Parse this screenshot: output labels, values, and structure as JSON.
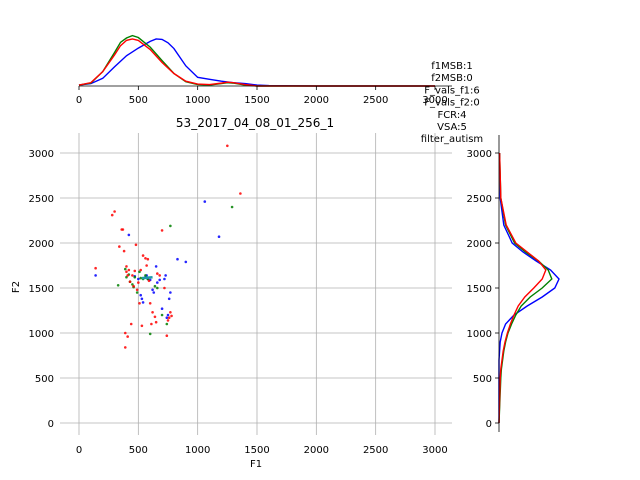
{
  "chart_data": [
    {
      "type": "scatter",
      "title": "53_2017_04_08_01_256_1",
      "xlabel": "F1",
      "ylabel": "F2",
      "xlim": [
        -100,
        3150
      ],
      "ylim": [
        -100,
        3230
      ],
      "xticks": [
        "0",
        "500",
        "1000",
        "1500",
        "2000",
        "2500",
        "3000"
      ],
      "yticks": [
        "0",
        "500",
        "1000",
        "1500",
        "2000",
        "2500",
        "3000"
      ],
      "grid": true,
      "series": [
        {
          "color": "#0000ff",
          "points": [
            [
              140,
              1640
            ],
            [
              420,
              2090
            ],
            [
              470,
              1630
            ],
            [
              500,
              1600
            ],
            [
              520,
              1420
            ],
            [
              530,
              1380
            ],
            [
              540,
              1340
            ],
            [
              560,
              1620
            ],
            [
              570,
              1640
            ],
            [
              580,
              1600
            ],
            [
              600,
              1590
            ],
            [
              620,
              1480
            ],
            [
              630,
              1450
            ],
            [
              650,
              1740
            ],
            [
              660,
              1560
            ],
            [
              680,
              1590
            ],
            [
              700,
              1270
            ],
            [
              720,
              1600
            ],
            [
              730,
              1640
            ],
            [
              740,
              1170
            ],
            [
              750,
              1200
            ],
            [
              760,
              1380
            ],
            [
              770,
              1450
            ],
            [
              830,
              1820
            ],
            [
              900,
              1790
            ],
            [
              1060,
              2460
            ],
            [
              1180,
              2070
            ]
          ]
        },
        {
          "color": "#008000",
          "points": [
            [
              330,
              1530
            ],
            [
              390,
              1710
            ],
            [
              400,
              1620
            ],
            [
              420,
              1650
            ],
            [
              430,
              1570
            ],
            [
              450,
              1540
            ],
            [
              460,
              1510
            ],
            [
              470,
              1620
            ],
            [
              490,
              1450
            ],
            [
              510,
              1680
            ],
            [
              520,
              1610
            ],
            [
              540,
              1600
            ],
            [
              560,
              1640
            ],
            [
              580,
              1600
            ],
            [
              600,
              990
            ],
            [
              640,
              1520
            ],
            [
              660,
              1500
            ],
            [
              700,
              1200
            ],
            [
              740,
              1100
            ],
            [
              770,
              2190
            ],
            [
              1290,
              2400
            ]
          ]
        },
        {
          "color": "#ff0000",
          "points": [
            [
              140,
              1720
            ],
            [
              280,
              2310
            ],
            [
              300,
              2350
            ],
            [
              340,
              1960
            ],
            [
              360,
              2150
            ],
            [
              370,
              2150
            ],
            [
              380,
              1910
            ],
            [
              390,
              1000
            ],
            [
              390,
              840
            ],
            [
              400,
              1740
            ],
            [
              400,
              1680
            ],
            [
              410,
              960
            ],
            [
              410,
              1640
            ],
            [
              420,
              1700
            ],
            [
              430,
              1570
            ],
            [
              440,
              1100
            ],
            [
              450,
              1640
            ],
            [
              460,
              1520
            ],
            [
              470,
              1690
            ],
            [
              480,
              1980
            ],
            [
              490,
              1480
            ],
            [
              500,
              1560
            ],
            [
              510,
              1330
            ],
            [
              520,
              1700
            ],
            [
              530,
              1080
            ],
            [
              540,
              1860
            ],
            [
              560,
              1830
            ],
            [
              570,
              1750
            ],
            [
              580,
              1820
            ],
            [
              590,
              1580
            ],
            [
              600,
              1330
            ],
            [
              610,
              1100
            ],
            [
              620,
              1230
            ],
            [
              640,
              1180
            ],
            [
              650,
              1120
            ],
            [
              660,
              1660
            ],
            [
              680,
              1640
            ],
            [
              700,
              2140
            ],
            [
              720,
              1500
            ],
            [
              740,
              970
            ],
            [
              750,
              1140
            ],
            [
              760,
              1170
            ],
            [
              770,
              1230
            ],
            [
              780,
              1190
            ],
            [
              1250,
              3080
            ],
            [
              1360,
              2550
            ]
          ]
        }
      ],
      "centroid_marker": {
        "x": [
          530,
          620
        ],
        "y": [
          1610,
          1620
        ],
        "color": "#1f9aa8"
      }
    },
    {
      "type": "line",
      "panel": "F1 density",
      "xlim": [
        -100,
        3150
      ],
      "xticks": [
        "0",
        "500",
        "1000",
        "1500",
        "2000",
        "2500",
        "3000"
      ],
      "series": [
        {
          "color": "#0000ff",
          "x": [
            0,
            100,
            200,
            300,
            400,
            500,
            600,
            650,
            700,
            750,
            800,
            900,
            1000,
            1100,
            1200,
            1300,
            1400,
            1500,
            1600,
            2000,
            3000
          ],
          "y": [
            0.02,
            0.05,
            0.16,
            0.4,
            0.63,
            0.79,
            0.93,
            0.98,
            0.97,
            0.9,
            0.78,
            0.42,
            0.18,
            0.14,
            0.1,
            0.07,
            0.05,
            0.02,
            0.01,
            0.0,
            0.0
          ]
        },
        {
          "color": "#008000",
          "x": [
            0,
            100,
            200,
            300,
            350,
            400,
            450,
            500,
            600,
            700,
            800,
            900,
            1000,
            1100,
            1200,
            1250,
            1300,
            1400,
            1500,
            2000,
            3000
          ],
          "y": [
            0.02,
            0.06,
            0.3,
            0.7,
            0.91,
            1.0,
            1.05,
            1.01,
            0.81,
            0.53,
            0.26,
            0.09,
            0.03,
            0.02,
            0.05,
            0.07,
            0.06,
            0.02,
            0.0,
            0.0,
            0.0
          ]
        },
        {
          "color": "#ff0000",
          "x": [
            0,
            100,
            200,
            300,
            350,
            400,
            450,
            500,
            600,
            700,
            800,
            900,
            1000,
            1100,
            1200,
            1250,
            1300,
            1400,
            1500,
            2000,
            3000
          ],
          "y": [
            0.02,
            0.07,
            0.3,
            0.65,
            0.84,
            0.95,
            0.98,
            0.95,
            0.76,
            0.49,
            0.26,
            0.1,
            0.04,
            0.03,
            0.06,
            0.08,
            0.07,
            0.03,
            0.0,
            0.0,
            0.0
          ]
        }
      ]
    },
    {
      "type": "line",
      "panel": "F2 density",
      "ylim": [
        -100,
        3230
      ],
      "yticks": [
        "0",
        "500",
        "1000",
        "1500",
        "2000",
        "2500",
        "3000"
      ],
      "series": [
        {
          "color": "#0000ff",
          "y": [
            3000,
            2500,
            2200,
            2000,
            1900,
            1800,
            1700,
            1600,
            1500,
            1400,
            1300,
            1200,
            1100,
            1000,
            900,
            800,
            700,
            600,
            500,
            0
          ],
          "x": [
            0.01,
            0.02,
            0.08,
            0.22,
            0.4,
            0.62,
            0.86,
            1.0,
            0.93,
            0.72,
            0.47,
            0.25,
            0.11,
            0.05,
            0.02,
            0.01,
            0.0,
            0.0,
            0.0,
            0.0
          ]
        },
        {
          "color": "#008000",
          "y": [
            3000,
            2500,
            2200,
            2000,
            1900,
            1800,
            1700,
            1600,
            1500,
            1400,
            1300,
            1200,
            1100,
            1000,
            900,
            800,
            700,
            600,
            500,
            0
          ],
          "x": [
            0.01,
            0.03,
            0.11,
            0.26,
            0.44,
            0.66,
            0.82,
            0.88,
            0.72,
            0.52,
            0.37,
            0.28,
            0.21,
            0.15,
            0.11,
            0.08,
            0.06,
            0.04,
            0.03,
            0.0
          ]
        },
        {
          "color": "#ff0000",
          "y": [
            3000,
            2500,
            2200,
            2000,
            1900,
            1800,
            1700,
            1600,
            1500,
            1400,
            1300,
            1200,
            1100,
            1000,
            900,
            800,
            700,
            600,
            500,
            0
          ],
          "x": [
            0.01,
            0.03,
            0.12,
            0.28,
            0.47,
            0.66,
            0.78,
            0.72,
            0.58,
            0.43,
            0.32,
            0.25,
            0.19,
            0.14,
            0.1,
            0.07,
            0.05,
            0.03,
            0.02,
            0.0
          ]
        }
      ]
    }
  ],
  "annotation": [
    "f1MSB:1",
    "f2MSB:0",
    "F_vals_f1:6",
    "F_vals_f2:0",
    "FCR:4",
    "VSA:5",
    "filter_autism"
  ]
}
